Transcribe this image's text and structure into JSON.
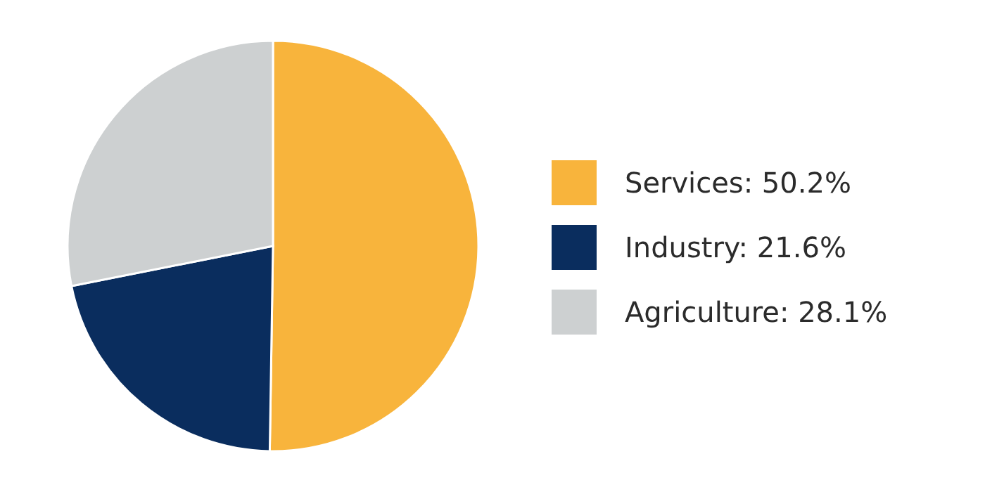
{
  "chart_data": {
    "type": "pie",
    "categories": [
      "Services",
      "Industry",
      "Agriculture"
    ],
    "values": [
      50.2,
      21.6,
      28.1
    ],
    "value_labels": [
      "50.2%",
      "21.6%",
      "28.1%"
    ],
    "colors": [
      "#f8b43c",
      "#0a2d5e",
      "#cdd0d1"
    ],
    "legend": "right"
  }
}
